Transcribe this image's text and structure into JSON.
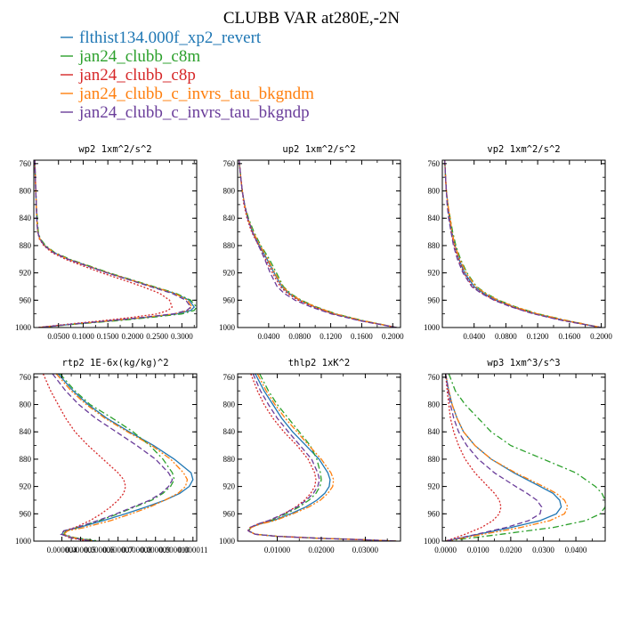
{
  "chart_data": {
    "title": "CLUBB VAR at280E,-2N",
    "series": [
      {
        "name": "flthist134.000f_xp2_revert",
        "color": "#1f77b4",
        "dash": "solid"
      },
      {
        "name": "jan24_clubb_c8m",
        "color": "#2ca02c",
        "dash": "dashdot"
      },
      {
        "name": "jan24_clubb_c8p",
        "color": "#d62728",
        "dash": "dotted"
      },
      {
        "name": "jan24_clubb_c_invrs_tau_bkgndm",
        "color": "#ff7f0e",
        "dash": "dashdotdot"
      },
      {
        "name": "jan24_clubb_c_invrs_tau_bkgndp",
        "color": "#6a3d9a",
        "dash": "longdash"
      }
    ],
    "panels": [
      {
        "type": "line",
        "title": "wp2  1xm^2/s^2",
        "xlim": [
          0,
          0.33
        ],
        "ylim": [
          1000,
          755
        ],
        "xticks": [
          0.05,
          0.1,
          0.15,
          0.2,
          0.25,
          0.3
        ],
        "xtick_labels": [
          "0.0500",
          "0.1000",
          "0.1500",
          "0.2000",
          "0.2500",
          "0.3000"
        ],
        "yticks": [
          760,
          800,
          840,
          880,
          920,
          960,
          1000
        ],
        "ytick_labels": [
          "760",
          "800",
          "840",
          "880",
          "920",
          "960",
          "1000"
        ],
        "y": [
          755,
          780,
          800,
          820,
          840,
          860,
          870,
          880,
          890,
          900,
          910,
          920,
          930,
          940,
          950,
          960,
          970,
          975,
          980,
          985,
          990,
          995,
          1000
        ],
        "values": [
          [
            0.002,
            0.003,
            0.004,
            0.005,
            0.006,
            0.008,
            0.012,
            0.022,
            0.04,
            0.07,
            0.11,
            0.15,
            0.195,
            0.24,
            0.285,
            0.315,
            0.325,
            0.318,
            0.29,
            0.23,
            0.16,
            0.08,
            0.01
          ],
          [
            0.002,
            0.003,
            0.004,
            0.005,
            0.007,
            0.009,
            0.013,
            0.024,
            0.042,
            0.073,
            0.113,
            0.153,
            0.198,
            0.243,
            0.288,
            0.318,
            0.33,
            0.325,
            0.3,
            0.24,
            0.17,
            0.085,
            0.01
          ],
          [
            0.002,
            0.003,
            0.004,
            0.005,
            0.006,
            0.008,
            0.011,
            0.02,
            0.036,
            0.064,
            0.1,
            0.138,
            0.18,
            0.22,
            0.255,
            0.275,
            0.28,
            0.272,
            0.25,
            0.2,
            0.14,
            0.07,
            0.008
          ],
          [
            0.002,
            0.003,
            0.004,
            0.005,
            0.006,
            0.008,
            0.012,
            0.022,
            0.04,
            0.07,
            0.11,
            0.15,
            0.195,
            0.24,
            0.285,
            0.312,
            0.32,
            0.312,
            0.285,
            0.225,
            0.155,
            0.078,
            0.01
          ],
          [
            0.002,
            0.003,
            0.004,
            0.005,
            0.006,
            0.008,
            0.012,
            0.021,
            0.039,
            0.069,
            0.108,
            0.148,
            0.192,
            0.236,
            0.28,
            0.308,
            0.318,
            0.31,
            0.283,
            0.223,
            0.153,
            0.077,
            0.01
          ]
        ]
      },
      {
        "type": "line",
        "title": "up2  1xm^2/s^2",
        "xlim": [
          0,
          0.21
        ],
        "ylim": [
          1000,
          755
        ],
        "xticks": [
          0.04,
          0.08,
          0.12,
          0.16,
          0.2
        ],
        "xtick_labels": [
          "0.0400",
          "0.0800",
          "0.1200",
          "0.1600",
          "0.2000"
        ],
        "yticks": [
          760,
          800,
          840,
          880,
          920,
          960,
          1000
        ],
        "ytick_labels": [
          "760",
          "800",
          "840",
          "880",
          "920",
          "960",
          "1000"
        ],
        "y": [
          755,
          780,
          800,
          820,
          840,
          860,
          880,
          900,
          920,
          940,
          950,
          960,
          970,
          980,
          990,
          1000
        ],
        "values": [
          [
            0.002,
            0.004,
            0.006,
            0.009,
            0.013,
            0.019,
            0.028,
            0.038,
            0.047,
            0.057,
            0.066,
            0.08,
            0.1,
            0.125,
            0.16,
            0.205
          ],
          [
            0.002,
            0.004,
            0.006,
            0.009,
            0.014,
            0.021,
            0.03,
            0.041,
            0.05,
            0.059,
            0.068,
            0.082,
            0.102,
            0.127,
            0.162,
            0.205
          ],
          [
            0.002,
            0.004,
            0.006,
            0.008,
            0.012,
            0.018,
            0.027,
            0.036,
            0.045,
            0.055,
            0.064,
            0.078,
            0.098,
            0.123,
            0.158,
            0.205
          ],
          [
            0.002,
            0.004,
            0.006,
            0.009,
            0.013,
            0.02,
            0.029,
            0.039,
            0.048,
            0.058,
            0.067,
            0.081,
            0.101,
            0.126,
            0.161,
            0.205
          ],
          [
            0.002,
            0.004,
            0.006,
            0.009,
            0.013,
            0.019,
            0.027,
            0.035,
            0.042,
            0.051,
            0.06,
            0.074,
            0.095,
            0.121,
            0.157,
            0.205
          ]
        ]
      },
      {
        "type": "line",
        "title": "vp2  1xm^2/s^2",
        "xlim": [
          0,
          0.205
        ],
        "ylim": [
          1000,
          755
        ],
        "xticks": [
          0.04,
          0.08,
          0.12,
          0.16,
          0.2
        ],
        "xtick_labels": [
          "0.0400",
          "0.0800",
          "0.1200",
          "0.1600",
          "0.2000"
        ],
        "yticks": [
          760,
          800,
          840,
          880,
          920,
          960,
          1000
        ],
        "ytick_labels": [
          "760",
          "800",
          "840",
          "880",
          "920",
          "960",
          "1000"
        ],
        "y": [
          755,
          780,
          800,
          820,
          840,
          860,
          880,
          900,
          920,
          940,
          950,
          960,
          970,
          980,
          990,
          1000
        ],
        "values": [
          [
            0.003,
            0.004,
            0.005,
            0.007,
            0.009,
            0.012,
            0.016,
            0.021,
            0.028,
            0.04,
            0.052,
            0.068,
            0.09,
            0.118,
            0.155,
            0.2
          ],
          [
            0.003,
            0.004,
            0.005,
            0.007,
            0.01,
            0.013,
            0.017,
            0.023,
            0.031,
            0.043,
            0.055,
            0.071,
            0.093,
            0.121,
            0.158,
            0.2
          ],
          [
            0.003,
            0.004,
            0.005,
            0.007,
            0.009,
            0.011,
            0.015,
            0.02,
            0.027,
            0.038,
            0.05,
            0.066,
            0.088,
            0.116,
            0.153,
            0.2
          ],
          [
            0.003,
            0.004,
            0.005,
            0.007,
            0.01,
            0.012,
            0.016,
            0.022,
            0.03,
            0.042,
            0.054,
            0.07,
            0.092,
            0.12,
            0.157,
            0.2
          ],
          [
            0.003,
            0.004,
            0.005,
            0.006,
            0.008,
            0.011,
            0.014,
            0.019,
            0.026,
            0.037,
            0.049,
            0.065,
            0.087,
            0.115,
            0.152,
            0.2
          ]
        ]
      },
      {
        "type": "line",
        "title": "rtp2  1E-6x(kg/kg)^2",
        "xlim": [
          2.5e-06,
          1.12e-05
        ],
        "ylim": [
          1000,
          755
        ],
        "xticks": [
          4e-06,
          5e-06,
          6e-06,
          7e-06,
          8e-06,
          9e-06,
          1e-05,
          1.1e-05
        ],
        "xtick_labels": [
          "0.000004",
          "0.000005",
          "0.000006",
          "0.000007",
          "0.000008",
          "0.000009",
          "0.000010",
          "0.000011"
        ],
        "yticks": [
          760,
          800,
          840,
          880,
          920,
          960,
          1000
        ],
        "ytick_labels": [
          "760",
          "800",
          "840",
          "880",
          "920",
          "960",
          "1000"
        ],
        "y": [
          755,
          780,
          800,
          820,
          840,
          860,
          880,
          900,
          910,
          920,
          930,
          940,
          950,
          960,
          970,
          980,
          985,
          990,
          995,
          1000
        ],
        "values": [
          [
            3.8e-06,
            4.6e-06,
            5.4e-06,
            6.4e-06,
            7.6e-06,
            8.9e-06,
            1e-05,
            1.09e-05,
            1.1e-05,
            1.08e-05,
            1.03e-05,
            9.5e-06,
            8.5e-06,
            7.4e-06,
            6.2e-06,
            4.9e-06,
            4.1e-06,
            4e-06,
            4.6e-06,
            5.8e-06
          ],
          [
            3.9e-06,
            4.7e-06,
            5.5e-06,
            6.7e-06,
            7.8e-06,
            8.7e-06,
            9.4e-06,
            9.9e-06,
            1e-05,
            9.8e-06,
            9.4e-06,
            8.8e-06,
            7.9e-06,
            7e-06,
            6e-06,
            4.8e-06,
            4.2e-06,
            4.1e-06,
            4.7e-06,
            6e-06
          ],
          [
            3e-06,
            3.4e-06,
            3.8e-06,
            4.2e-06,
            4.7e-06,
            5.4e-06,
            6.2e-06,
            7e-06,
            7.3e-06,
            7.4e-06,
            7.3e-06,
            7e-06,
            6.6e-06,
            6.1e-06,
            5.5e-06,
            4.7e-06,
            4.1e-06,
            4e-06,
            4.4e-06,
            5.4e-06
          ],
          [
            3.7e-06,
            4.5e-06,
            5.3e-06,
            6.3e-06,
            7.5e-06,
            8.8e-06,
            9.8e-06,
            1.05e-05,
            1.07e-05,
            1.06e-05,
            1.02e-05,
            9.5e-06,
            8.7e-06,
            7.7e-06,
            6.6e-06,
            5.2e-06,
            4.3e-06,
            4.1e-06,
            4.6e-06,
            5.7e-06
          ],
          [
            3.5e-06,
            4.2e-06,
            4.9e-06,
            5.8e-06,
            6.9e-06,
            8e-06,
            9e-06,
            9.7e-06,
            9.9e-06,
            9.7e-06,
            9.3e-06,
            8.7e-06,
            7.8e-06,
            6.9e-06,
            5.9e-06,
            4.8e-06,
            4.1e-06,
            3.95e-06,
            4.5e-06,
            5.6e-06
          ]
        ]
      },
      {
        "type": "line",
        "title": "thlp2  1xK^2",
        "xlim": [
          0.001,
          0.038
        ],
        "ylim": [
          1000,
          755
        ],
        "xticks": [
          0.01,
          0.02,
          0.03
        ],
        "xtick_labels": [
          "0.01000",
          "0.02000",
          "0.03000"
        ],
        "yticks": [
          760,
          800,
          840,
          880,
          920,
          960,
          1000
        ],
        "ytick_labels": [
          "760",
          "800",
          "840",
          "880",
          "920",
          "960",
          "1000"
        ],
        "y": [
          755,
          780,
          800,
          820,
          840,
          860,
          880,
          900,
          910,
          920,
          930,
          940,
          950,
          960,
          970,
          975,
          980,
          985,
          990,
          993,
          996,
          998,
          1000
        ],
        "values": [
          [
            0.005,
            0.007,
            0.009,
            0.011,
            0.0135,
            0.0165,
            0.0195,
            0.0215,
            0.022,
            0.0218,
            0.0208,
            0.019,
            0.0165,
            0.013,
            0.009,
            0.006,
            0.004,
            0.0035,
            0.005,
            0.01,
            0.02,
            0.03,
            0.037
          ],
          [
            0.006,
            0.008,
            0.01,
            0.0125,
            0.015,
            0.0175,
            0.019,
            0.0198,
            0.02,
            0.0197,
            0.0188,
            0.0172,
            0.015,
            0.012,
            0.0085,
            0.0058,
            0.004,
            0.0035,
            0.005,
            0.01,
            0.02,
            0.03,
            0.037
          ],
          [
            0.004,
            0.0055,
            0.007,
            0.009,
            0.0115,
            0.0145,
            0.017,
            0.0185,
            0.0188,
            0.0185,
            0.0176,
            0.0162,
            0.0142,
            0.0115,
            0.0082,
            0.0056,
            0.0038,
            0.0033,
            0.005,
            0.01,
            0.02,
            0.03,
            0.037
          ],
          [
            0.0055,
            0.0075,
            0.0095,
            0.0118,
            0.0145,
            0.0172,
            0.02,
            0.0222,
            0.0228,
            0.0226,
            0.0215,
            0.0198,
            0.0172,
            0.0136,
            0.0094,
            0.0062,
            0.0041,
            0.0036,
            0.005,
            0.01,
            0.02,
            0.03,
            0.037
          ],
          [
            0.0045,
            0.0062,
            0.008,
            0.01,
            0.0125,
            0.0152,
            0.0178,
            0.0192,
            0.0196,
            0.0192,
            0.0182,
            0.0166,
            0.0145,
            0.0115,
            0.008,
            0.0055,
            0.0038,
            0.0034,
            0.005,
            0.01,
            0.02,
            0.03,
            0.037
          ]
        ]
      },
      {
        "type": "line",
        "title": "wp3  1xm^3/s^3",
        "xlim": [
          -0.001,
          0.049
        ],
        "ylim": [
          1000,
          755
        ],
        "xticks": [
          0.0,
          0.01,
          0.02,
          0.03,
          0.04
        ],
        "xtick_labels": [
          "0.0000",
          "0.0100",
          "0.0200",
          "0.0300",
          "0.0400"
        ],
        "yticks": [
          760,
          800,
          840,
          880,
          920,
          960,
          1000
        ],
        "ytick_labels": [
          "760",
          "800",
          "840",
          "880",
          "920",
          "960",
          "1000"
        ],
        "y": [
          755,
          780,
          800,
          820,
          840,
          860,
          880,
          900,
          920,
          930,
          940,
          950,
          960,
          970,
          980,
          990,
          1000
        ],
        "values": [
          [
            0.0,
            0.001,
            0.002,
            0.0035,
            0.0055,
            0.009,
            0.014,
            0.021,
            0.029,
            0.033,
            0.035,
            0.0355,
            0.034,
            0.029,
            0.02,
            0.01,
            0.0
          ],
          [
            0.001,
            0.003,
            0.006,
            0.01,
            0.014,
            0.02,
            0.03,
            0.04,
            0.046,
            0.048,
            0.049,
            0.049,
            0.0475,
            0.043,
            0.033,
            0.017,
            0.0
          ],
          [
            0.0,
            0.0005,
            0.001,
            0.0015,
            0.0025,
            0.004,
            0.006,
            0.009,
            0.013,
            0.015,
            0.0165,
            0.017,
            0.0165,
            0.0145,
            0.011,
            0.006,
            0.0
          ],
          [
            0.0,
            0.001,
            0.002,
            0.0035,
            0.0055,
            0.009,
            0.014,
            0.0215,
            0.03,
            0.034,
            0.0365,
            0.0375,
            0.0365,
            0.032,
            0.023,
            0.0115,
            0.0
          ],
          [
            0.0,
            0.0008,
            0.0015,
            0.0025,
            0.004,
            0.0065,
            0.01,
            0.015,
            0.0215,
            0.025,
            0.028,
            0.0295,
            0.029,
            0.0255,
            0.0185,
            0.0095,
            0.0
          ]
        ]
      }
    ]
  }
}
